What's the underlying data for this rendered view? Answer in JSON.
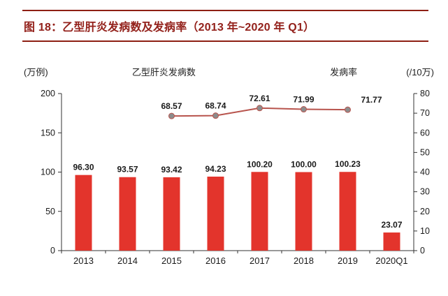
{
  "header": {
    "title": "图 18：乙型肝炎发病数及发病率（2013 年~2020 年 Q1）"
  },
  "chart": {
    "left_unit": "(万例)",
    "right_unit": "(/10万)",
    "legend_bar": "乙型肝炎发病数",
    "legend_line": "发病率"
  },
  "chart_data": {
    "type": "bar",
    "subtype": "bar+line dual axis",
    "title": "乙型肝炎发病数及发病率（2013 年~2020 年 Q1）",
    "categories": [
      "2013",
      "2014",
      "2015",
      "2016",
      "2017",
      "2018",
      "2019",
      "2020Q1"
    ],
    "series": [
      {
        "name": "乙型肝炎发病数",
        "type": "bar",
        "axis": "left",
        "unit": "万例",
        "values": [
          96.3,
          93.57,
          93.42,
          94.23,
          100.2,
          100.0,
          100.23,
          23.07
        ],
        "labels": [
          "96.30",
          "93.57",
          "93.42",
          "94.23",
          "100.20",
          "100.00",
          "100.23",
          "23.07"
        ]
      },
      {
        "name": "发病率",
        "type": "line",
        "axis": "right",
        "unit": "/10万",
        "values": [
          null,
          null,
          68.57,
          68.74,
          72.61,
          71.99,
          71.77,
          null
        ],
        "labels": [
          null,
          null,
          "68.57",
          "68.74",
          "72.61",
          "71.99",
          "71.77",
          null
        ],
        "label_dx": [
          0,
          0,
          0,
          0,
          0,
          0,
          34,
          0
        ]
      }
    ],
    "left_axis": {
      "label": "(万例)",
      "min": 0,
      "max": 200,
      "ticks": [
        0,
        50,
        100,
        150,
        200
      ]
    },
    "right_axis": {
      "label": "(/10万)",
      "min": 0,
      "max": 80,
      "ticks": [
        0,
        10,
        20,
        30,
        40,
        50,
        60,
        70,
        80
      ]
    },
    "grid": false,
    "legend_position": "top",
    "colors": {
      "bar": "#e3342c",
      "line": "#b8544d",
      "marker": "#8c8c8c",
      "axis": "#333333",
      "label": "#1a1a1a"
    }
  }
}
